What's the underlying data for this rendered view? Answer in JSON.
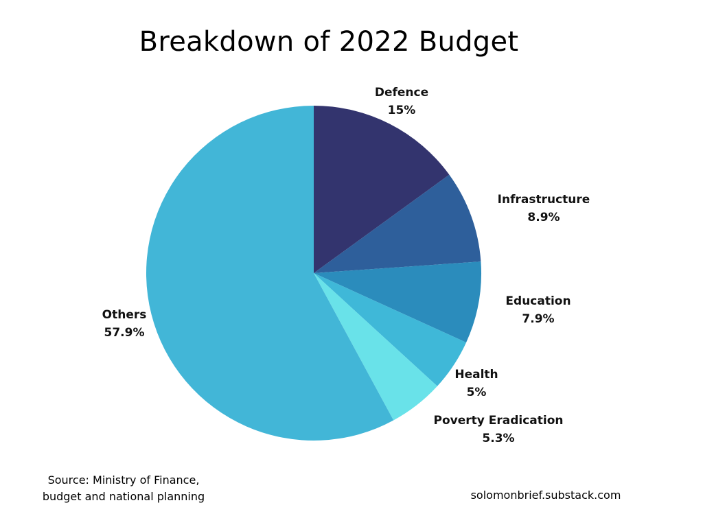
{
  "chart_data": {
    "type": "pie",
    "title": "Breakdown of 2022 Budget",
    "slices": [
      {
        "label": "Defence",
        "value": 15,
        "value_label": "15%",
        "color": "#33346e"
      },
      {
        "label": "Infrastructure",
        "value": 8.9,
        "value_label": "8.9%",
        "color": "#2e5f9b"
      },
      {
        "label": "Education",
        "value": 7.9,
        "value_label": "7.9%",
        "color": "#2b8cbc"
      },
      {
        "label": "Health",
        "value": 5,
        "value_label": "5%",
        "color": "#3fb8d8"
      },
      {
        "label": "Poverty Eradication",
        "value": 5.3,
        "value_label": "5.3%",
        "color": "#69e2e9"
      },
      {
        "label": "Others",
        "value": 57.9,
        "value_label": "57.9%",
        "color": "#42b6d7"
      }
    ]
  },
  "footer": {
    "source_line1": "Source: Ministry of Finance,",
    "source_line2": "budget and national planning",
    "credit": "solomonbrief.substack.com"
  }
}
